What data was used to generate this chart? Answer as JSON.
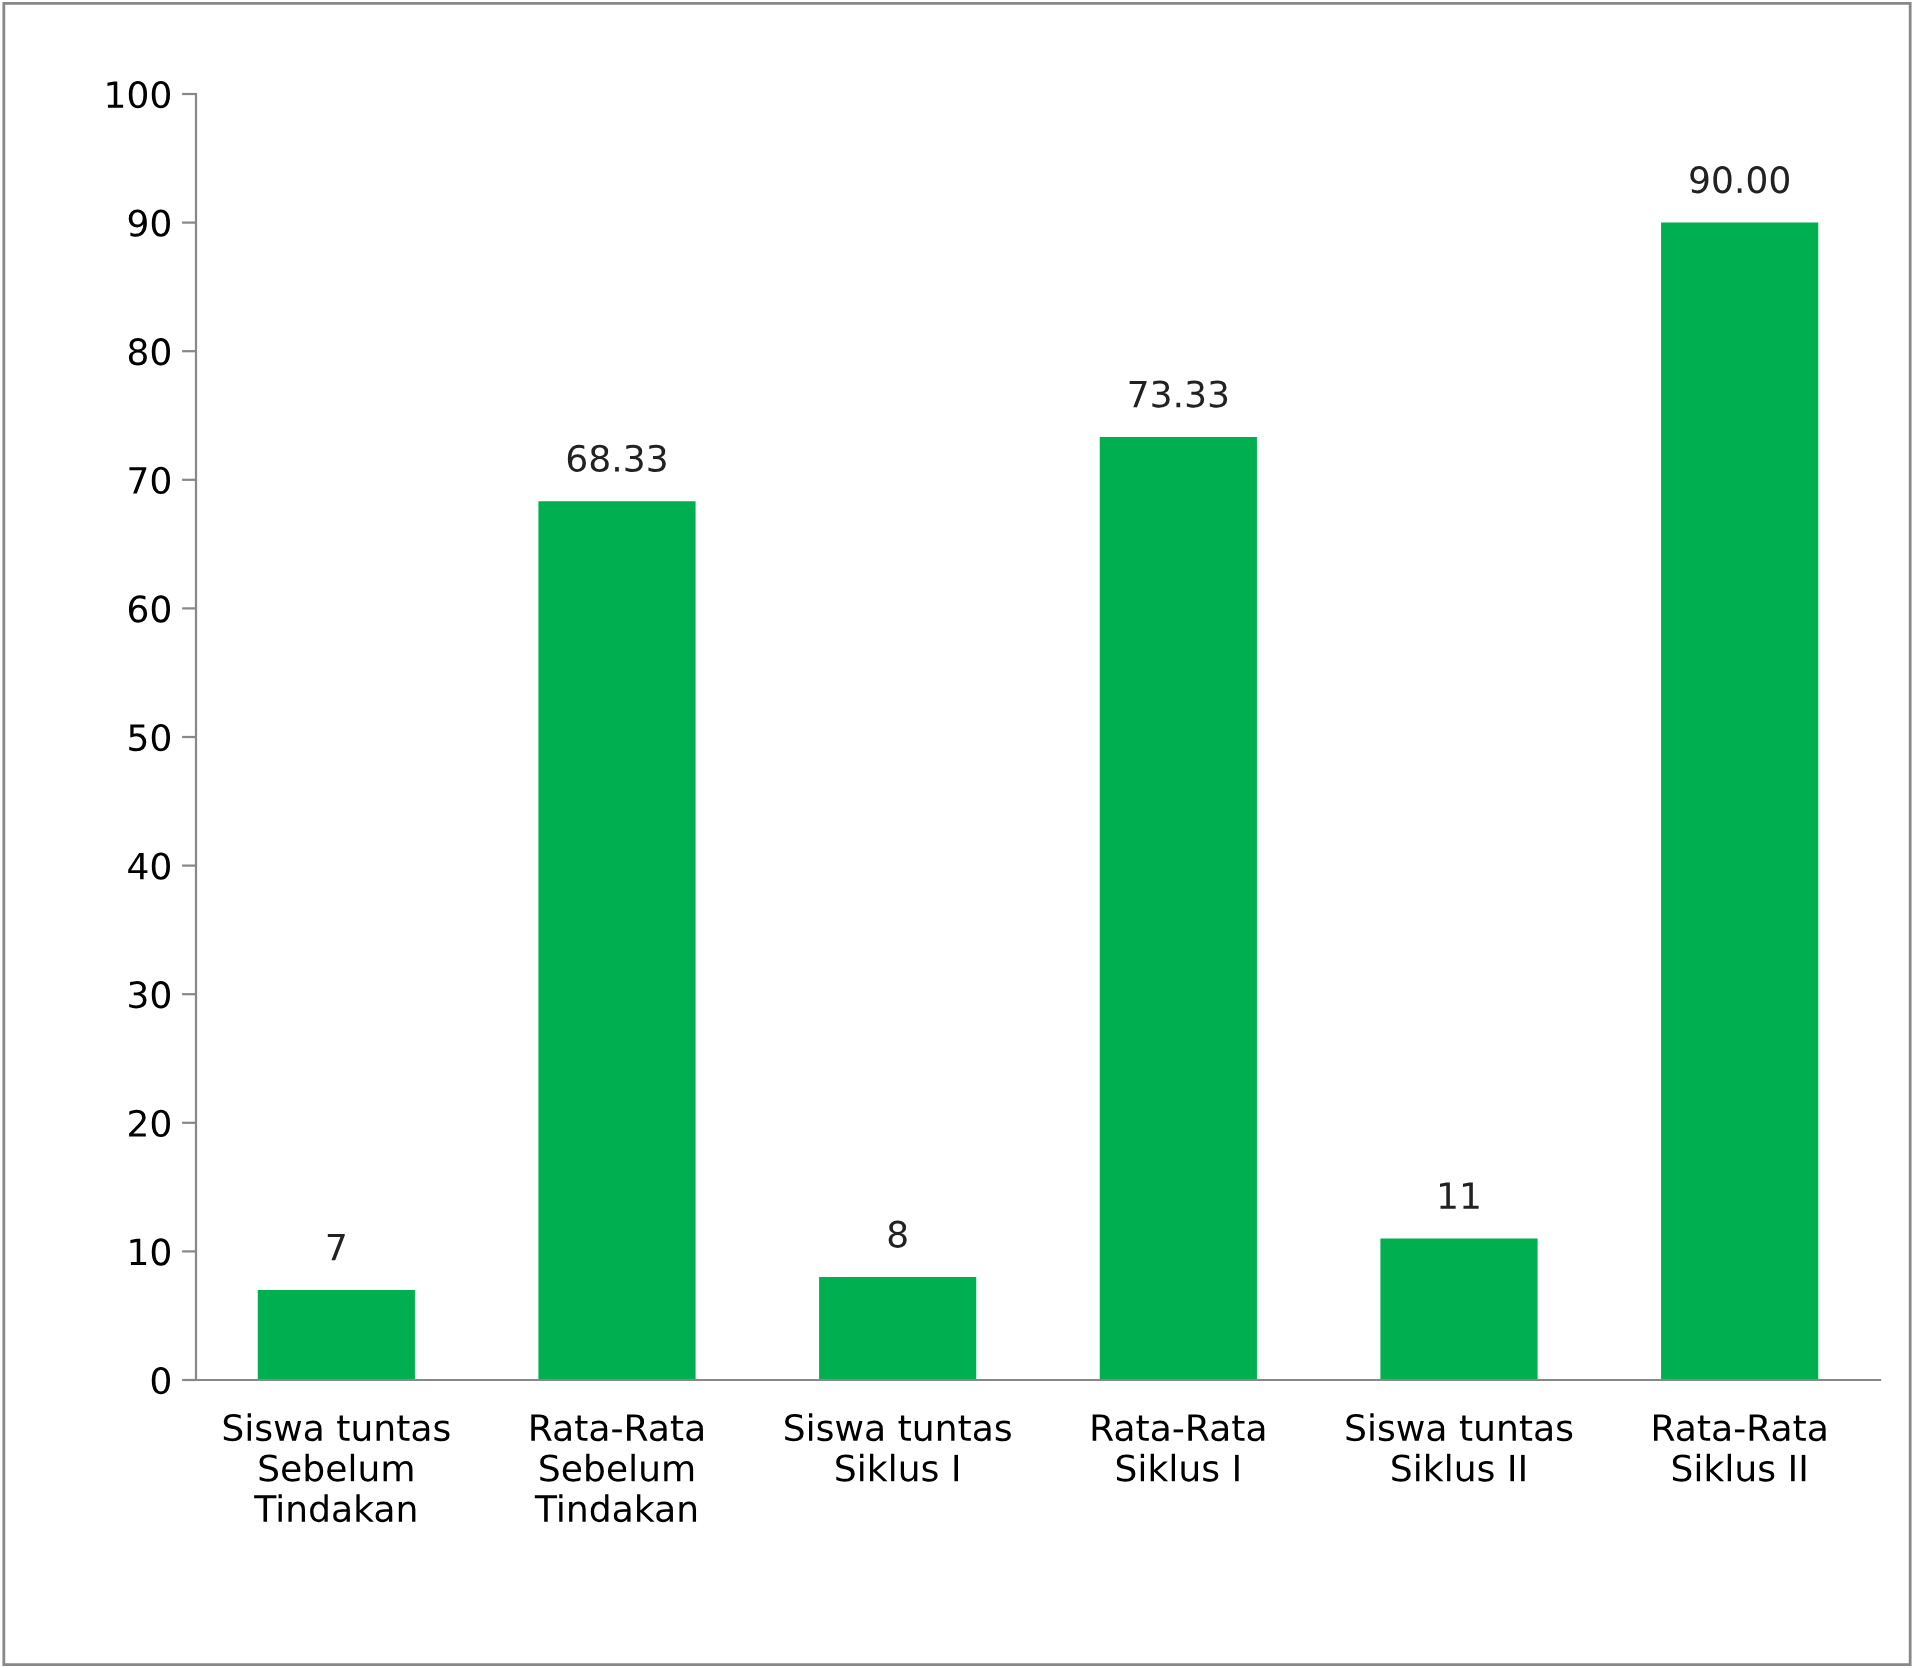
{
  "chart_data": {
    "type": "bar",
    "categories": [
      "Siswa tuntas\nSebelum\nTindakan",
      "Rata-Rata\nSebelum\nTindakan",
      "Siswa tuntas\nSiklus I",
      "Rata-Rata\nSiklus I",
      "Siswa tuntas\nSiklus II",
      "Rata-Rata\nSiklus II"
    ],
    "values": [
      7,
      68.33,
      8,
      73.33,
      11,
      90.0
    ],
    "value_labels": [
      "7",
      "68.33",
      "8",
      "73.33",
      "11",
      "90.00"
    ],
    "color": "#00b050",
    "ylim": [
      0,
      100
    ],
    "yticks": [
      0,
      10,
      20,
      30,
      40,
      50,
      60,
      70,
      80,
      90,
      100
    ],
    "grid": false
  }
}
